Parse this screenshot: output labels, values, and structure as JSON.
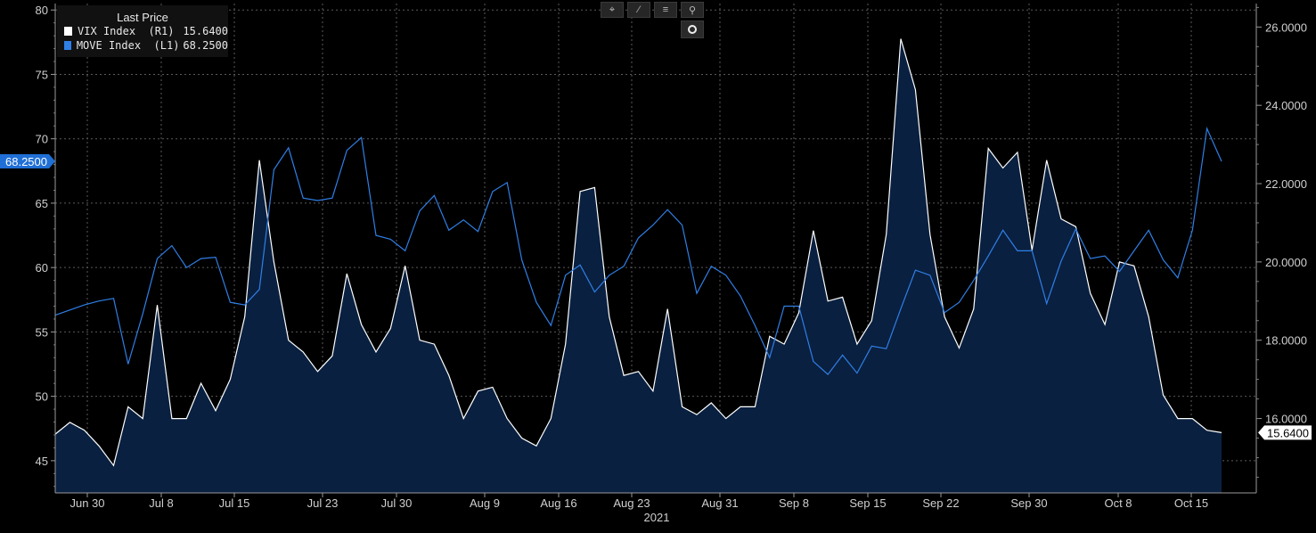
{
  "legend": {
    "header": "Last Price",
    "items": [
      {
        "label": "VIX Index  (R1)",
        "value": "15.6400",
        "color": "#ffffff"
      },
      {
        "label": "MOVE Index  (L1)",
        "value": "68.2500",
        "color": "#2f7fe6"
      }
    ]
  },
  "toolbar": {
    "icons": [
      "crosshair-icon",
      "draw-icon",
      "list-icon",
      "zoom-icon",
      "settings-icon"
    ]
  },
  "chart_data": {
    "type": "line",
    "xlabel": "2021",
    "x_ticks": [
      "Jun 30",
      "Jul 8",
      "Jul 15",
      "Jul 23",
      "Jul 30",
      "Aug 9",
      "Aug 16",
      "Aug 23",
      "Aug 31",
      "Sep 8",
      "Sep 15",
      "Sep 22",
      "Sep 30",
      "Oct 8",
      "Oct 15"
    ],
    "left_axis": {
      "ticks": [
        "80",
        "75",
        "70",
        "65",
        "60",
        "55",
        "50",
        "45"
      ],
      "range": [
        42.5,
        80.5
      ]
    },
    "right_axis": {
      "ticks": [
        "26.0000",
        "24.0000",
        "22.0000",
        "20.0000",
        "18.0000",
        "16.0000"
      ],
      "range": [
        14.1,
        26.6
      ]
    },
    "series": [
      {
        "name": "MOVE Index (L1)",
        "axis": "left",
        "style": "line",
        "color": "#2f7fe6",
        "last_value": "68.2500",
        "values": [
          56.3,
          56.7,
          57.1,
          57.4,
          57.6,
          52.5,
          56.4,
          60.7,
          61.7,
          60.0,
          60.7,
          60.8,
          57.3,
          57.1,
          58.3,
          67.6,
          69.3,
          65.4,
          65.2,
          65.4,
          69.1,
          70.1,
          62.5,
          62.2,
          61.3,
          64.4,
          65.6,
          62.9,
          63.7,
          62.8,
          65.9,
          66.6,
          60.6,
          57.3,
          55.5,
          59.4,
          60.2,
          58.1,
          59.4,
          60.1,
          62.3,
          63.3,
          64.5,
          63.3,
          58.0,
          60.1,
          59.4,
          57.8,
          55.5,
          53.0,
          57.0,
          57.0,
          52.7,
          51.7,
          53.2,
          51.8,
          53.9,
          53.7,
          56.8,
          59.8,
          59.4,
          56.5,
          57.3,
          59.0,
          60.9,
          62.9,
          61.3,
          61.3,
          57.2,
          60.5,
          63.0,
          60.7,
          60.9,
          59.7,
          61.3,
          62.9,
          60.6,
          59.2,
          62.9,
          70.8,
          68.25
        ]
      },
      {
        "name": "VIX Index (R1)",
        "axis": "right",
        "style": "area",
        "color": "#ffffff",
        "fill": "#0a2040",
        "last_value": "15.6400",
        "values": [
          15.6,
          15.9,
          15.7,
          15.3,
          14.8,
          16.3,
          16.0,
          18.9,
          16.0,
          16.0,
          16.9,
          16.2,
          17.0,
          18.6,
          22.6,
          20.0,
          18.0,
          17.7,
          17.2,
          17.6,
          19.7,
          18.4,
          17.7,
          18.3,
          19.9,
          18.0,
          17.9,
          17.1,
          16.0,
          16.7,
          16.8,
          16.0,
          15.5,
          15.3,
          16.0,
          17.9,
          21.8,
          21.9,
          18.6,
          17.1,
          17.2,
          16.7,
          18.8,
          16.3,
          16.1,
          16.4,
          16.0,
          16.3,
          16.3,
          18.1,
          17.9,
          18.7,
          20.8,
          19.0,
          19.1,
          17.9,
          18.5,
          20.7,
          25.7,
          24.4,
          20.7,
          18.6,
          17.8,
          18.8,
          22.9,
          22.4,
          22.8,
          20.3,
          22.6,
          21.1,
          20.9,
          19.2,
          18.4,
          20.0,
          19.9,
          18.6,
          16.6,
          16.0,
          16.0,
          15.7,
          15.64
        ]
      }
    ],
    "grid": true,
    "legend_position": "top-left"
  }
}
